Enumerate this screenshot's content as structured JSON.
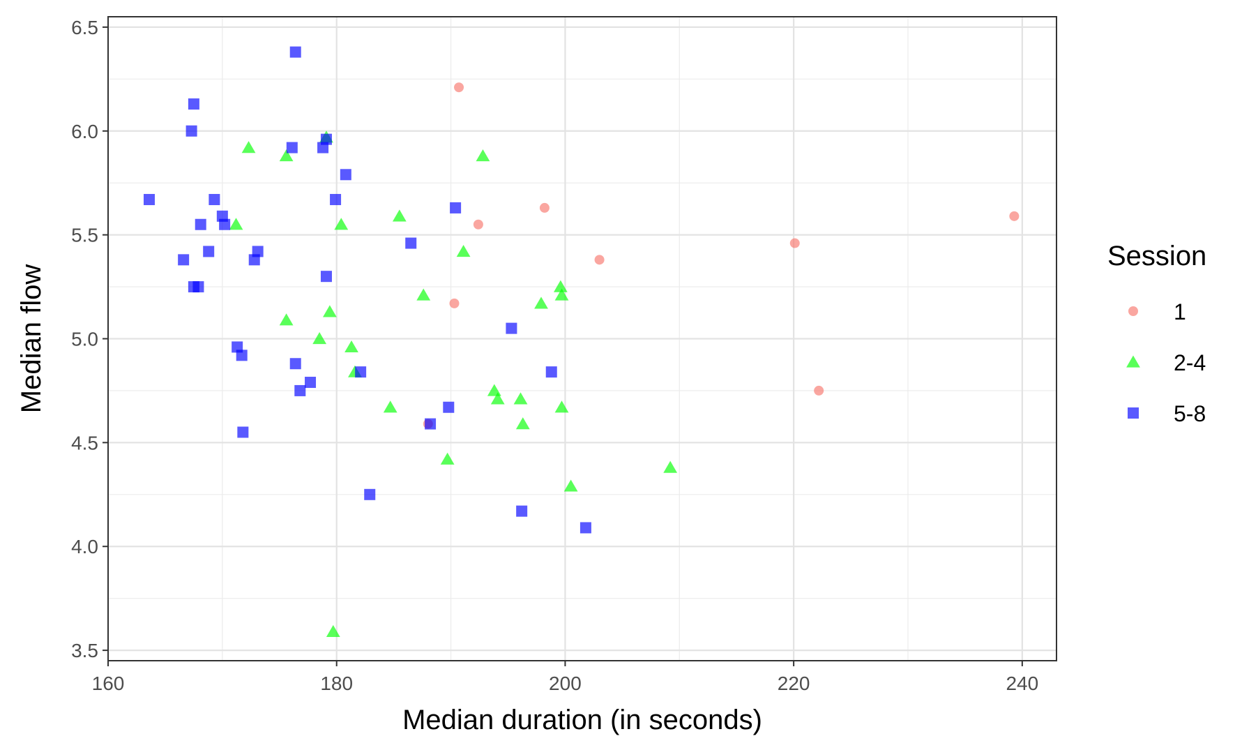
{
  "chart_data": {
    "type": "scatter",
    "xlabel": "Median duration (in seconds)",
    "ylabel": "Median flow",
    "xlim": [
      160,
      243
    ],
    "ylim": [
      3.45,
      6.55
    ],
    "x_ticks": [
      "160",
      "180",
      "200",
      "220",
      "240"
    ],
    "y_ticks": [
      "3.5",
      "4.0",
      "4.5",
      "5.0",
      "5.5",
      "6.0",
      "6.5"
    ],
    "grid": true,
    "legend": {
      "title": "Session",
      "position": "right"
    },
    "series": [
      {
        "name": "1",
        "marker": "circle",
        "color": "#F8766D",
        "points": [
          {
            "x": 190.7,
            "y": 6.21
          },
          {
            "x": 198.2,
            "y": 5.63
          },
          {
            "x": 192.4,
            "y": 5.55
          },
          {
            "x": 239.3,
            "y": 5.59
          },
          {
            "x": 220.1,
            "y": 5.46
          },
          {
            "x": 203.0,
            "y": 5.38
          },
          {
            "x": 190.3,
            "y": 5.17
          },
          {
            "x": 222.2,
            "y": 4.75
          },
          {
            "x": 188.0,
            "y": 4.59
          }
        ]
      },
      {
        "name": "2-4",
        "marker": "triangle",
        "color": "#00FF00",
        "points": [
          {
            "x": 179.1,
            "y": 5.97
          },
          {
            "x": 172.3,
            "y": 5.92
          },
          {
            "x": 175.6,
            "y": 5.88
          },
          {
            "x": 192.8,
            "y": 5.88
          },
          {
            "x": 185.5,
            "y": 5.59
          },
          {
            "x": 171.2,
            "y": 5.55
          },
          {
            "x": 180.4,
            "y": 5.55
          },
          {
            "x": 191.1,
            "y": 5.42
          },
          {
            "x": 199.6,
            "y": 5.25
          },
          {
            "x": 187.6,
            "y": 5.21
          },
          {
            "x": 199.7,
            "y": 5.21
          },
          {
            "x": 197.9,
            "y": 5.17
          },
          {
            "x": 179.4,
            "y": 5.13
          },
          {
            "x": 175.6,
            "y": 5.09
          },
          {
            "x": 178.5,
            "y": 5.0
          },
          {
            "x": 181.3,
            "y": 4.96
          },
          {
            "x": 181.6,
            "y": 4.84
          },
          {
            "x": 193.8,
            "y": 4.75
          },
          {
            "x": 194.1,
            "y": 4.71
          },
          {
            "x": 196.1,
            "y": 4.71
          },
          {
            "x": 184.7,
            "y": 4.67
          },
          {
            "x": 199.7,
            "y": 4.67
          },
          {
            "x": 196.3,
            "y": 4.59
          },
          {
            "x": 189.7,
            "y": 4.42
          },
          {
            "x": 209.2,
            "y": 4.38
          },
          {
            "x": 200.5,
            "y": 4.29
          },
          {
            "x": 179.7,
            "y": 3.59
          }
        ]
      },
      {
        "name": "5-8",
        "marker": "square",
        "color": "#0000FF",
        "points": [
          {
            "x": 176.4,
            "y": 6.38
          },
          {
            "x": 167.5,
            "y": 6.13
          },
          {
            "x": 167.3,
            "y": 6.0
          },
          {
            "x": 179.1,
            "y": 5.96
          },
          {
            "x": 176.1,
            "y": 5.92
          },
          {
            "x": 178.8,
            "y": 5.92
          },
          {
            "x": 180.8,
            "y": 5.79
          },
          {
            "x": 163.6,
            "y": 5.67
          },
          {
            "x": 169.3,
            "y": 5.67
          },
          {
            "x": 179.9,
            "y": 5.67
          },
          {
            "x": 190.4,
            "y": 5.63
          },
          {
            "x": 170.0,
            "y": 5.59
          },
          {
            "x": 168.1,
            "y": 5.55
          },
          {
            "x": 170.2,
            "y": 5.55
          },
          {
            "x": 186.5,
            "y": 5.46
          },
          {
            "x": 168.8,
            "y": 5.42
          },
          {
            "x": 173.1,
            "y": 5.42
          },
          {
            "x": 166.6,
            "y": 5.38
          },
          {
            "x": 172.8,
            "y": 5.38
          },
          {
            "x": 179.1,
            "y": 5.3
          },
          {
            "x": 167.5,
            "y": 5.25
          },
          {
            "x": 167.9,
            "y": 5.25
          },
          {
            "x": 195.3,
            "y": 5.05
          },
          {
            "x": 171.3,
            "y": 4.96
          },
          {
            "x": 171.7,
            "y": 4.92
          },
          {
            "x": 176.4,
            "y": 4.88
          },
          {
            "x": 182.1,
            "y": 4.84
          },
          {
            "x": 198.8,
            "y": 4.84
          },
          {
            "x": 177.7,
            "y": 4.79
          },
          {
            "x": 176.8,
            "y": 4.75
          },
          {
            "x": 189.8,
            "y": 4.67
          },
          {
            "x": 188.2,
            "y": 4.59
          },
          {
            "x": 171.8,
            "y": 4.55
          },
          {
            "x": 182.9,
            "y": 4.25
          },
          {
            "x": 196.2,
            "y": 4.17
          },
          {
            "x": 201.8,
            "y": 4.09
          }
        ]
      }
    ]
  }
}
